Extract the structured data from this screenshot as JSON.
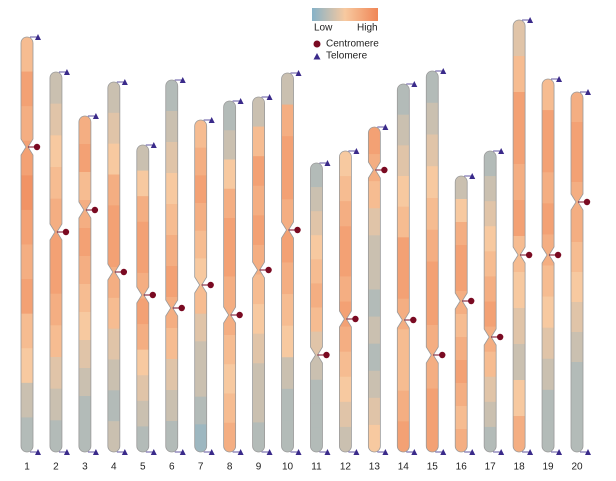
{
  "chart_data": {
    "type": "ideogram",
    "legend": {
      "low": "Low",
      "high": "High",
      "centromere": "Centromere",
      "telomere": "Telomere"
    },
    "colors": {
      "low": "#86b2c8",
      "mid": "#f7c9a0",
      "high": "#f08656",
      "centromere": "#7a0a22",
      "telomere": "#3a2a8a",
      "outline": "#9a9a9a"
    },
    "ylim": [
      0,
      440
    ],
    "chromosomes": [
      {
        "name": "1",
        "length": 415,
        "centromere": 110,
        "density": [
          0.6,
          0.8,
          0.7,
          0.8,
          0.9,
          0.8,
          0.7,
          0.8,
          0.6,
          0.5,
          0.3,
          0.2
        ]
      },
      {
        "name": "2",
        "length": 380,
        "centromere": 160,
        "density": [
          0.3,
          0.4,
          0.5,
          0.6,
          0.7,
          0.8,
          0.8,
          0.7,
          0.6,
          0.4,
          0.3,
          0.2
        ]
      },
      {
        "name": "3",
        "length": 336,
        "centromere": 94,
        "density": [
          0.7,
          0.8,
          0.6,
          0.7,
          0.8,
          0.7,
          0.6,
          0.5,
          0.4,
          0.3,
          0.2,
          0.2
        ]
      },
      {
        "name": "4",
        "length": 370,
        "centromere": 190,
        "density": [
          0.3,
          0.4,
          0.5,
          0.7,
          0.8,
          0.8,
          0.7,
          0.6,
          0.4,
          0.3,
          0.2,
          0.3
        ]
      },
      {
        "name": "5",
        "length": 307,
        "centromere": 150,
        "density": [
          0.3,
          0.5,
          0.7,
          0.8,
          0.8,
          0.7,
          0.8,
          0.7,
          0.5,
          0.4,
          0.3,
          0.2
        ]
      },
      {
        "name": "6",
        "length": 372,
        "centromere": 228,
        "density": [
          0.2,
          0.3,
          0.4,
          0.5,
          0.6,
          0.7,
          0.8,
          0.7,
          0.6,
          0.4,
          0.3,
          0.2
        ]
      },
      {
        "name": "7",
        "length": 332,
        "centromere": 165,
        "density": [
          0.6,
          0.7,
          0.8,
          0.7,
          0.6,
          0.5,
          0.6,
          0.4,
          0.3,
          0.3,
          0.2,
          0.1
        ]
      },
      {
        "name": "8",
        "length": 351,
        "centromere": 214,
        "density": [
          0.2,
          0.3,
          0.5,
          0.7,
          0.8,
          0.8,
          0.7,
          0.7,
          0.6,
          0.5,
          0.6,
          0.7
        ]
      },
      {
        "name": "9",
        "length": 355,
        "centromere": 173,
        "density": [
          0.3,
          0.6,
          0.8,
          0.7,
          0.8,
          0.7,
          0.6,
          0.5,
          0.4,
          0.3,
          0.3,
          0.2
        ]
      },
      {
        "name": "10",
        "length": 379,
        "centromere": 157,
        "density": [
          0.3,
          0.7,
          0.8,
          0.8,
          0.7,
          0.8,
          0.7,
          0.6,
          0.5,
          0.3,
          0.2,
          0.2
        ]
      },
      {
        "name": "11",
        "length": 289,
        "centromere": 192,
        "density": [
          0.2,
          0.3,
          0.4,
          0.5,
          0.6,
          0.7,
          0.6,
          0.4,
          0.3,
          0.2,
          0.2,
          0.2
        ]
      },
      {
        "name": "12",
        "length": 301,
        "centromere": 168,
        "density": [
          0.5,
          0.6,
          0.7,
          0.8,
          0.8,
          0.7,
          0.8,
          0.7,
          0.6,
          0.5,
          0.4,
          0.3
        ]
      },
      {
        "name": "13",
        "length": 325,
        "centromere": 43,
        "density": [
          0.8,
          0.7,
          0.6,
          0.4,
          0.3,
          0.3,
          0.2,
          0.3,
          0.2,
          0.3,
          0.4,
          0.5
        ]
      },
      {
        "name": "14",
        "length": 368,
        "centromere": 236,
        "density": [
          0.2,
          0.3,
          0.4,
          0.5,
          0.6,
          0.8,
          0.8,
          0.7,
          0.6,
          0.6,
          0.7,
          0.8
        ]
      },
      {
        "name": "15",
        "length": 381,
        "centromere": 284,
        "density": [
          0.2,
          0.3,
          0.4,
          0.5,
          0.6,
          0.7,
          0.8,
          0.8,
          0.7,
          0.7,
          0.8,
          0.8
        ]
      },
      {
        "name": "16",
        "length": 276,
        "centromere": 125,
        "density": [
          0.3,
          0.5,
          0.7,
          0.8,
          0.8,
          0.7,
          0.6,
          0.7,
          0.8,
          0.7,
          0.6,
          0.7
        ]
      },
      {
        "name": "17",
        "length": 301,
        "centromere": 186,
        "density": [
          0.2,
          0.3,
          0.4,
          0.5,
          0.6,
          0.7,
          0.8,
          0.7,
          0.6,
          0.4,
          0.3,
          0.2
        ]
      },
      {
        "name": "18",
        "length": 432,
        "centromere": 235,
        "density": [
          0.4,
          0.6,
          0.8,
          0.8,
          0.7,
          0.8,
          0.6,
          0.5,
          0.4,
          0.3,
          0.5,
          0.7
        ]
      },
      {
        "name": "19",
        "length": 373,
        "centromere": 176,
        "density": [
          0.6,
          0.8,
          0.8,
          0.7,
          0.8,
          0.7,
          0.6,
          0.5,
          0.4,
          0.3,
          0.2,
          0.2
        ]
      },
      {
        "name": "20",
        "length": 360,
        "centromere": 110,
        "density": [
          0.7,
          0.8,
          0.8,
          0.7,
          0.7,
          0.6,
          0.5,
          0.4,
          0.3,
          0.2,
          0.2,
          0.2
        ]
      }
    ]
  }
}
